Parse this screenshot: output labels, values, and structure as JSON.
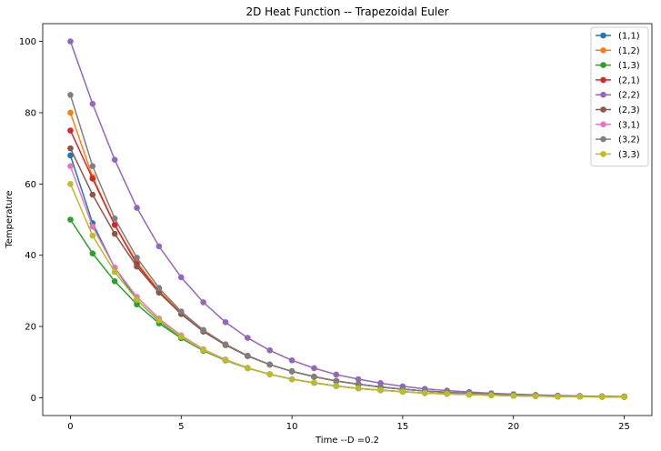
{
  "chart_data": {
    "type": "line",
    "title": "2D Heat Function -- Trapezoidal Euler",
    "xlabel": "Time --D =0.2",
    "ylabel": "Temperature",
    "xlim": [
      -1.25,
      26.25
    ],
    "ylim": [
      -5,
      105
    ],
    "xticks": [
      0,
      5,
      10,
      15,
      20,
      25
    ],
    "yticks": [
      0,
      20,
      40,
      60,
      80,
      100
    ],
    "grid": false,
    "legend_position": "top-right",
    "x": [
      0,
      1,
      2,
      3,
      4,
      5,
      6,
      7,
      8,
      9,
      10,
      11,
      12,
      13,
      14,
      15,
      16,
      17,
      18,
      19,
      20,
      21,
      22,
      23,
      24,
      25
    ],
    "series": [
      {
        "name": "(1,1)",
        "color": "#1f77b4",
        "values": [
          68,
          49,
          36.5,
          27.5,
          21.5,
          17,
          13.2,
          10.5,
          8.3,
          6.6,
          5.2,
          4.2,
          3.3,
          2.6,
          2.1,
          1.7,
          1.3,
          1.1,
          0.9,
          0.7,
          0.55,
          0.45,
          0.35,
          0.3,
          0.25,
          0.2
        ]
      },
      {
        "name": "(1,2)",
        "color": "#ff7f0e",
        "values": [
          80,
          62,
          48.5,
          38,
          30,
          24,
          19,
          15,
          11.8,
          9.3,
          7.4,
          5.9,
          4.7,
          3.8,
          3,
          2.4,
          1.9,
          1.5,
          1.2,
          1,
          0.8,
          0.65,
          0.5,
          0.4,
          0.35,
          0.3
        ]
      },
      {
        "name": "(1,3)",
        "color": "#2ca02c",
        "values": [
          50,
          40.5,
          32.7,
          26.2,
          20.9,
          16.7,
          13.2,
          10.5,
          8.3,
          6.6,
          5.2,
          4.2,
          3.3,
          2.6,
          2.1,
          1.7,
          1.3,
          1.1,
          0.9,
          0.7,
          0.55,
          0.45,
          0.35,
          0.3,
          0.25,
          0.2
        ]
      },
      {
        "name": "(2,1)",
        "color": "#d62728",
        "values": [
          75,
          61.5,
          48.5,
          37.5,
          29.7,
          23.5,
          18.6,
          14.8,
          11.7,
          9.3,
          7.4,
          5.9,
          4.7,
          3.8,
          3,
          2.4,
          1.9,
          1.5,
          1.2,
          1,
          0.8,
          0.65,
          0.5,
          0.4,
          0.35,
          0.3
        ]
      },
      {
        "name": "(2,2)",
        "color": "#9467bd",
        "values": [
          100,
          82.5,
          66.8,
          53.3,
          42.5,
          33.8,
          26.8,
          21.2,
          16.8,
          13.3,
          10.5,
          8.3,
          6.5,
          5.2,
          4.1,
          3.2,
          2.5,
          2,
          1.6,
          1.25,
          1,
          0.8,
          0.6,
          0.5,
          0.4,
          0.3
        ]
      },
      {
        "name": "(2,3)",
        "color": "#8c564b",
        "values": [
          70,
          57,
          46,
          36.8,
          29.5,
          23.5,
          18.6,
          14.8,
          11.7,
          9.3,
          7.4,
          5.9,
          4.7,
          3.8,
          3,
          2.4,
          1.9,
          1.5,
          1.2,
          1,
          0.8,
          0.65,
          0.5,
          0.4,
          0.35,
          0.3
        ]
      },
      {
        "name": "(3,1)",
        "color": "#e377c2",
        "values": [
          65,
          48,
          36.5,
          28.3,
          22.2,
          17.5,
          13.6,
          10.7,
          8.4,
          6.6,
          5.2,
          4.2,
          3.3,
          2.6,
          2.1,
          1.7,
          1.3,
          1.1,
          0.9,
          0.7,
          0.55,
          0.45,
          0.35,
          0.3,
          0.25,
          0.2
        ]
      },
      {
        "name": "(3,2)",
        "color": "#7f7f7f",
        "values": [
          85,
          65,
          50.3,
          39.3,
          30.8,
          24.2,
          19,
          15,
          11.8,
          9.3,
          7.4,
          5.9,
          4.7,
          3.8,
          3,
          2.4,
          1.9,
          1.5,
          1.2,
          1,
          0.8,
          0.65,
          0.5,
          0.4,
          0.35,
          0.3
        ]
      },
      {
        "name": "(3,3)",
        "color": "#bcbd22",
        "values": [
          60,
          45.5,
          35.3,
          27.5,
          21.7,
          17.1,
          13.4,
          10.6,
          8.3,
          6.6,
          5.2,
          4.2,
          3.3,
          2.6,
          2.1,
          1.7,
          1.3,
          1.1,
          0.9,
          0.7,
          0.55,
          0.45,
          0.35,
          0.3,
          0.25,
          0.2
        ]
      }
    ]
  }
}
